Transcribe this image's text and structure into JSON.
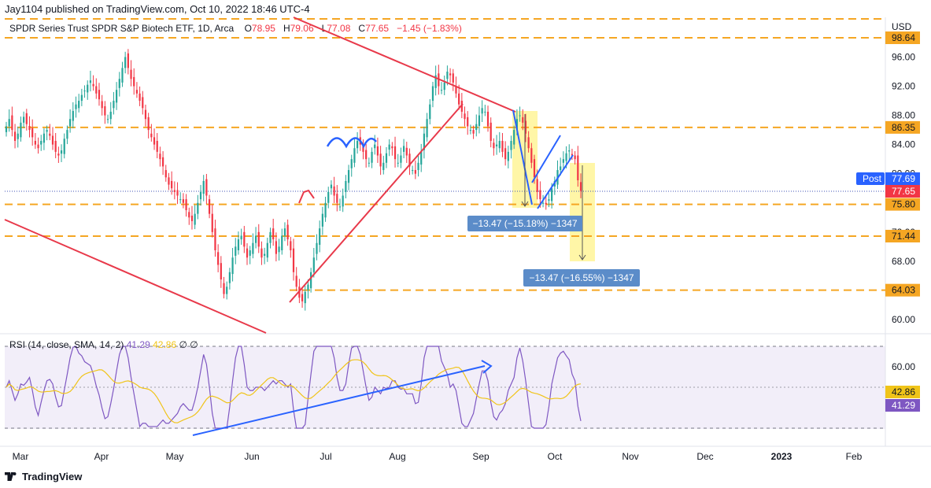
{
  "header": {
    "published": "Jay1104 published on TradingView.com, Oct 10, 2022 18:46 UTC-4",
    "symbol": "SPDR Series Trust SPDR S&P Biotech ETF, 1D, Arca",
    "ohlc": {
      "o_label": "O",
      "o": "78.95",
      "h_label": "H",
      "h": "79.06",
      "l_label": "L",
      "l": "77.08",
      "c_label": "C",
      "c": "77.65",
      "chg": "−1.45 (−1.83%)"
    }
  },
  "rsi": {
    "title": "RSI (14, close, SMA, 14, 2)",
    "value": "41.29",
    "sma": "42.86",
    "extra": "∅ ∅",
    "axis_label": "60.00",
    "badge_sma": "42.86",
    "badge_rsi": "41.29"
  },
  "footer": {
    "brand": "TradingView"
  },
  "colors": {
    "up": "#26a69a",
    "down": "#f23645",
    "level": "#f5a623",
    "trend": "#e8394a",
    "blue": "#2962ff",
    "rsi": "#7e57c2",
    "rsi_sma": "#f0c419",
    "highlight": "#fff59d",
    "measure": "#5b8cc9"
  },
  "chart_data": {
    "type": "candlestick",
    "currency": "USD",
    "ylim": [
      58.5,
      101
    ],
    "y_ticks": [
      "96.00",
      "92.00",
      "88.00",
      "84.00",
      "80.00",
      "72.00",
      "68.00",
      "64.00",
      "60.00"
    ],
    "x_ticks": [
      "Mar",
      "Apr",
      "May",
      "Jun",
      "Jul",
      "Aug",
      "Sep",
      "Oct",
      "Nov",
      "Dec",
      "2023",
      "Feb"
    ],
    "levels": [
      {
        "value": 100.2,
        "label": ""
      },
      {
        "value": 98.64,
        "label": "98.64"
      },
      {
        "value": 86.35,
        "label": "86.35"
      },
      {
        "value": 75.8,
        "label": "75.80"
      },
      {
        "value": 71.44,
        "label": "71.44"
      },
      {
        "value": 64.03,
        "label": "64.03"
      }
    ],
    "post_label": "Post",
    "post_price": "77.69",
    "last_price": "77.65",
    "measurements": [
      {
        "text": "−13.47 (−15.18%) −1347"
      },
      {
        "text": "−13.47 (−16.55%) −1347"
      }
    ],
    "close_series": [
      86.5,
      87.5,
      86.0,
      84.5,
      85.5,
      87.0,
      87.8,
      86.8,
      86.0,
      85.0,
      84.0,
      83.5,
      84.5,
      85.5,
      86.0,
      85.2,
      84.0,
      83.0,
      82.5,
      83.2,
      84.8,
      86.0,
      87.5,
      88.6,
      89.5,
      90.0,
      90.8,
      91.4,
      92.2,
      92.8,
      92.0,
      91.0,
      90.2,
      89.0,
      88.0,
      87.5,
      88.5,
      90.0,
      91.5,
      93.0,
      94.5,
      96.0,
      94.5,
      93.0,
      92.0,
      91.0,
      90.0,
      89.0,
      87.5,
      86.0,
      85.0,
      84.0,
      83.0,
      82.0,
      81.0,
      79.5,
      78.5,
      78.0,
      77.5,
      77.0,
      76.5,
      76.0,
      75.0,
      74.0,
      73.5,
      74.5,
      76.0,
      77.5,
      79.0,
      77.0,
      74.5,
      72.0,
      69.5,
      67.5,
      65.5,
      63.5,
      64.5,
      66.5,
      68.5,
      70.0,
      71.0,
      71.5,
      70.0,
      68.5,
      69.5,
      70.5,
      71.5,
      70.0,
      68.5,
      69.0,
      70.5,
      72.0,
      71.0,
      69.0,
      70.0,
      71.5,
      72.5,
      71.0,
      69.5,
      66.5,
      64.5,
      63.0,
      62.5,
      63.8,
      64.8,
      66.5,
      68.5,
      70.5,
      72.5,
      74.5,
      76.0,
      77.5,
      78.5,
      77.0,
      76.0,
      75.5,
      77.0,
      79.0,
      80.5,
      82.0,
      83.5,
      84.5,
      84.0,
      83.0,
      82.0,
      81.5,
      83.0,
      84.0,
      82.5,
      81.0,
      81.5,
      82.8,
      84.0,
      83.5,
      82.0,
      81.5,
      82.5,
      83.8,
      82.5,
      81.0,
      80.5,
      80.0,
      81.5,
      83.0,
      85.5,
      87.5,
      89.5,
      92.0,
      93.5,
      92.0,
      91.5,
      92.5,
      94.0,
      93.5,
      92.5,
      91.0,
      89.5,
      88.5,
      87.5,
      86.5,
      86.0,
      85.5,
      86.8,
      88.0,
      89.0,
      88.5,
      86.5,
      84.5,
      83.5,
      84.0,
      84.5,
      83.0,
      82.0,
      83.0,
      84.5,
      86.0,
      87.5,
      88.0,
      87.0,
      85.5,
      83.5,
      81.5,
      79.5,
      77.5,
      76.5,
      76.0,
      75.8,
      76.5,
      78.0,
      79.0,
      80.5,
      81.0,
      82.0,
      82.8,
      83.2,
      82.5,
      82.0,
      79.1,
      77.65
    ]
  }
}
